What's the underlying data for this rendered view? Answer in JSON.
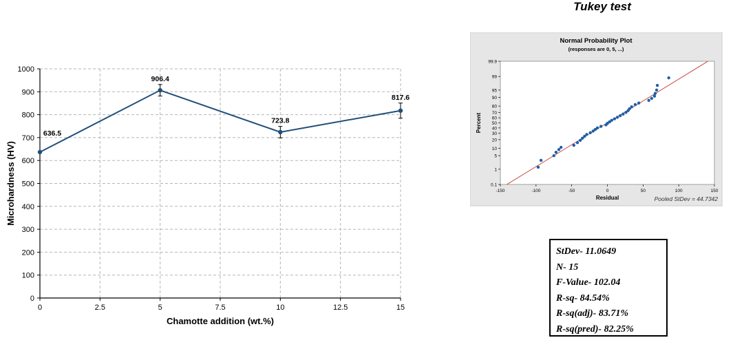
{
  "heading": "Tukey test",
  "chart_data": [
    {
      "type": "line",
      "title": "",
      "xlabel": "Chamotte addition (wt.%)",
      "ylabel": "Microhardness (HV)",
      "xlim": [
        0,
        15
      ],
      "ylim": [
        0,
        1000
      ],
      "xticks": [
        0,
        2.5,
        5,
        7.5,
        10,
        12.5,
        15
      ],
      "xtick_labels": [
        "0",
        "2.5",
        "5",
        "7.5",
        "10",
        "12.5",
        "15"
      ],
      "yticks": [
        0,
        100,
        200,
        300,
        400,
        500,
        600,
        700,
        800,
        900,
        1000
      ],
      "ytick_labels": [
        "0",
        "100",
        "200",
        "300",
        "400",
        "500",
        "600",
        "700",
        "800",
        "900",
        "1000"
      ],
      "grid": true,
      "x": [
        0,
        5,
        10,
        15
      ],
      "values": [
        636.5,
        906.4,
        723.8,
        817.6
      ],
      "data_labels": [
        "636.5",
        "906.4",
        "723.8",
        "817.6"
      ],
      "error": [
        0,
        25,
        25,
        33
      ],
      "color": "#1f4e79"
    },
    {
      "type": "scatter",
      "title": "Normal Probability Plot",
      "subtitle": "(responses are 0, 5, ...)",
      "xlabel": "Residual",
      "ylabel": "Percent",
      "scale_y": "normal-probability",
      "xlim": [
        -150,
        150
      ],
      "ylim": [
        0.1,
        99.9
      ],
      "xticks": [
        -150,
        -100,
        -50,
        0,
        50,
        100,
        150
      ],
      "xtick_labels": [
        "-150",
        "-100",
        "-50",
        "0",
        "50",
        "100",
        "150"
      ],
      "yticks": [
        0.1,
        1,
        5,
        10,
        20,
        30,
        40,
        50,
        60,
        70,
        80,
        90,
        95,
        99,
        99.9
      ],
      "ytick_labels": [
        "0.1",
        "1",
        "5",
        "10",
        "20",
        "30",
        "40",
        "50",
        "60",
        "70",
        "80",
        "90",
        "95",
        "99",
        "99.9"
      ],
      "annotation": "Pooled StDev = 44.7342",
      "fit_line": {
        "x": [
          -150,
          150
        ],
        "y": [
          0.05,
          99.95
        ]
      },
      "points": [
        {
          "x": -97,
          "y": 1.3
        },
        {
          "x": -93,
          "y": 3
        },
        {
          "x": -75,
          "y": 5
        },
        {
          "x": -72,
          "y": 7
        },
        {
          "x": -68,
          "y": 9
        },
        {
          "x": -65,
          "y": 11
        },
        {
          "x": -47,
          "y": 13
        },
        {
          "x": -42,
          "y": 16
        },
        {
          "x": -38,
          "y": 19
        },
        {
          "x": -35,
          "y": 22
        },
        {
          "x": -32,
          "y": 25
        },
        {
          "x": -29,
          "y": 28
        },
        {
          "x": -24,
          "y": 31
        },
        {
          "x": -20,
          "y": 34
        },
        {
          "x": -17,
          "y": 37
        },
        {
          "x": -14,
          "y": 40
        },
        {
          "x": -9,
          "y": 43
        },
        {
          "x": -2,
          "y": 46
        },
        {
          "x": 0,
          "y": 49
        },
        {
          "x": 3,
          "y": 52
        },
        {
          "x": 6,
          "y": 55
        },
        {
          "x": 10,
          "y": 58
        },
        {
          "x": 14,
          "y": 61
        },
        {
          "x": 18,
          "y": 64
        },
        {
          "x": 22,
          "y": 67
        },
        {
          "x": 26,
          "y": 70
        },
        {
          "x": 29,
          "y": 73
        },
        {
          "x": 31,
          "y": 76
        },
        {
          "x": 34,
          "y": 79
        },
        {
          "x": 39,
          "y": 82
        },
        {
          "x": 44,
          "y": 84
        },
        {
          "x": 58,
          "y": 87
        },
        {
          "x": 62,
          "y": 89
        },
        {
          "x": 66,
          "y": 91
        },
        {
          "x": 67,
          "y": 93
        },
        {
          "x": 69,
          "y": 95
        },
        {
          "x": 70,
          "y": 97
        },
        {
          "x": 86,
          "y": 98.8
        }
      ],
      "marker_color": "#1f5fa8",
      "line_color": "#c0392b"
    }
  ],
  "stats": [
    "StDev- 11.0649",
    "N- 15",
    "F-Value- 102.04",
    "R-sq- 84.54%",
    "R-sq(adj)- 83.71%",
    "R-sq(pred)- 82.25%"
  ]
}
